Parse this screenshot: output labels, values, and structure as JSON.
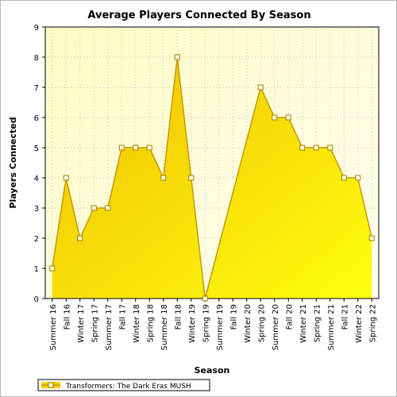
{
  "chart_data": {
    "type": "area",
    "title": "Average Players Connected By Season",
    "xlabel": "Season",
    "ylabel": "Players Connected",
    "ylim": [
      0,
      9
    ],
    "yticks": [
      "0",
      "1",
      "2",
      "3",
      "4",
      "5",
      "6",
      "7",
      "8",
      "9"
    ],
    "grid": true,
    "legend_position": "bottom-left",
    "categories": [
      "Summer 16",
      "Fall 16",
      "Winter 17",
      "Spring 17",
      "Summer 17",
      "Fall 17",
      "Winter 18",
      "Spring 18",
      "Summer 18",
      "Fall 18",
      "Winter 19",
      "Spring 19",
      "Summer 19",
      "Fall 19",
      "Winter 20",
      "Spring 20",
      "Summer 20",
      "Fall 20",
      "Winter 21",
      "Spring 21",
      "Summer 21",
      "Fall 21",
      "Winter 22",
      "Spring 22"
    ],
    "series": [
      {
        "name": "Transformers: The Dark Eras MUSH",
        "color": "#f5d000",
        "points": [
          {
            "x": 0.0,
            "y": 1
          },
          {
            "x": 1.0,
            "y": 4
          },
          {
            "x": 2.0,
            "y": 2
          },
          {
            "x": 3.0,
            "y": 3
          },
          {
            "x": 4.0,
            "y": 3
          },
          {
            "x": 5.0,
            "y": 5
          },
          {
            "x": 6.0,
            "y": 5
          },
          {
            "x": 7.0,
            "y": 5
          },
          {
            "x": 8.0,
            "y": 4
          },
          {
            "x": 9.0,
            "y": 8
          },
          {
            "x": 10.0,
            "y": 4
          },
          {
            "x": 11.0,
            "y": 0
          },
          {
            "x": 15.0,
            "y": 7
          },
          {
            "x": 16.0,
            "y": 6
          },
          {
            "x": 17.0,
            "y": 6
          },
          {
            "x": 18.0,
            "y": 5
          },
          {
            "x": 19.0,
            "y": 5
          },
          {
            "x": 20.0,
            "y": 5
          },
          {
            "x": 21.0,
            "y": 4
          },
          {
            "x": 22.0,
            "y": 4
          },
          {
            "x": 23.0,
            "y": 2
          }
        ]
      }
    ],
    "colors": {
      "plot_top": "#fefcd4",
      "plot_bottom": "#fffde8",
      "area_top": "#f2c300",
      "area_bottom": "#ffff00",
      "line": "#c59a00",
      "marker_fill": "#fffce0",
      "marker_stroke": "#a08000",
      "grid": "#c0c0c0"
    }
  }
}
